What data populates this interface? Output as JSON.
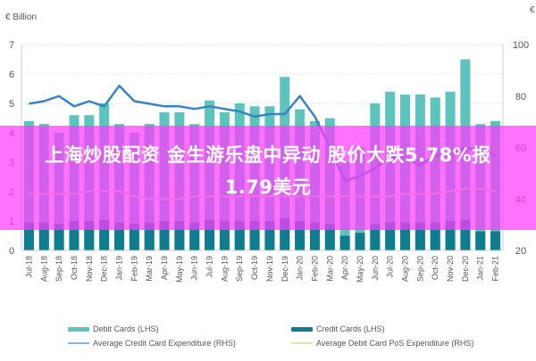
{
  "chart_data": {
    "type": "bar",
    "title": "",
    "left_axis_unit": "€ Billion",
    "right_axis_unit": "€",
    "xlabel": "",
    "ylabel_left": "€ Billion",
    "ylabel_right": "€",
    "ylim_left": [
      0,
      7
    ],
    "ylim_right": [
      20,
      100
    ],
    "yticks_left": [
      0,
      1,
      2,
      3,
      4,
      5,
      6,
      7
    ],
    "yticks_right": [
      20,
      40,
      60,
      80,
      100
    ],
    "grid": true,
    "legend_position": "bottom",
    "categories": [
      "Jul-18",
      "Aug-18",
      "Sep-18",
      "Oct-18",
      "Nov-18",
      "Dec-18",
      "Jan-19",
      "Feb-19",
      "Mar-19",
      "Apr-19",
      "May-19",
      "Jun-19",
      "Jul-19",
      "Aug-19",
      "Sep-19",
      "Oct-19",
      "Nov-19",
      "Dec-19",
      "Jan-20",
      "Feb-20",
      "Mar-20",
      "Apr-20",
      "May-20",
      "Jun-20",
      "Jul-20",
      "Aug-20",
      "Sep-20",
      "Oct-20",
      "Nov-20",
      "Dec-20",
      "Jan-21",
      "Feb-21"
    ],
    "series": [
      {
        "name": "Debit Cards (LHS)",
        "type": "bar",
        "axis": "left",
        "color": "#5cc3bd",
        "values": [
          4.4,
          4.3,
          4.0,
          4.6,
          4.6,
          5.0,
          4.3,
          4.0,
          4.3,
          4.7,
          4.7,
          4.3,
          5.1,
          4.7,
          5.0,
          4.9,
          4.9,
          5.9,
          4.8,
          4.4,
          4.5,
          3.0,
          3.5,
          5.0,
          5.4,
          5.3,
          5.3,
          5.2,
          5.4,
          6.5,
          4.3,
          4.4
        ]
      },
      {
        "name": "Credit Cards (LHS)",
        "type": "bar",
        "axis": "left",
        "color": "#0e7e8f",
        "values": [
          0.95,
          0.95,
          0.9,
          1.0,
          1.0,
          1.05,
          0.95,
          0.9,
          0.95,
          1.0,
          1.0,
          0.95,
          1.05,
          1.0,
          1.0,
          1.0,
          1.0,
          1.1,
          1.0,
          0.95,
          0.9,
          0.5,
          0.6,
          0.9,
          0.95,
          0.95,
          0.95,
          0.95,
          1.0,
          1.05,
          0.65,
          0.65
        ]
      },
      {
        "name": "Average Credit Card Expenditure (RHS)",
        "type": "line",
        "axis": "right",
        "color": "#3b82c4",
        "values": [
          77,
          78,
          80,
          76,
          78,
          76,
          84,
          78,
          77,
          76,
          76,
          75,
          76,
          75,
          74,
          72,
          73,
          73,
          80,
          72,
          60,
          47,
          49,
          52,
          56,
          56,
          53,
          57,
          57,
          60,
          59,
          57
        ]
      },
      {
        "name": "Average Debit Card PoS Expenditure (RHS)",
        "type": "line",
        "axis": "right",
        "color": "#d9e8a8",
        "values": [
          42,
          42,
          42,
          42,
          43,
          43,
          43,
          41,
          40,
          40,
          40,
          41,
          41,
          41,
          41,
          41,
          41,
          41,
          41,
          41,
          41,
          41,
          41,
          41,
          41,
          42,
          42,
          42,
          43,
          44,
          44,
          43
        ]
      }
    ]
  },
  "axes": {
    "left_unit_label": "€ Billion",
    "right_unit_label": "€",
    "left_ticks": [
      "0",
      "1",
      "2",
      "3",
      "4",
      "5",
      "6",
      "7"
    ],
    "right_ticks": [
      "20",
      "40",
      "60",
      "80",
      "100"
    ]
  },
  "legend": {
    "items": [
      {
        "label": "Debit Cards (LHS)",
        "color": "#5cc3bd",
        "kind": "bar"
      },
      {
        "label": "Credit Cards (LHS)",
        "color": "#0e7e8f",
        "kind": "bar"
      },
      {
        "label": "Average Credit Card Expenditure (RHS)",
        "color": "#8fb4e0",
        "kind": "line"
      },
      {
        "label": "Average Debit Card PoS Expenditure (RHS)",
        "color": "#d9e8a8",
        "kind": "line"
      }
    ]
  },
  "overlay": {
    "line1": "上海炒股配资 金生游乐盘中异动 股价大跌5.78%报",
    "line2": "1.79美元",
    "background": "#ff3cff"
  }
}
